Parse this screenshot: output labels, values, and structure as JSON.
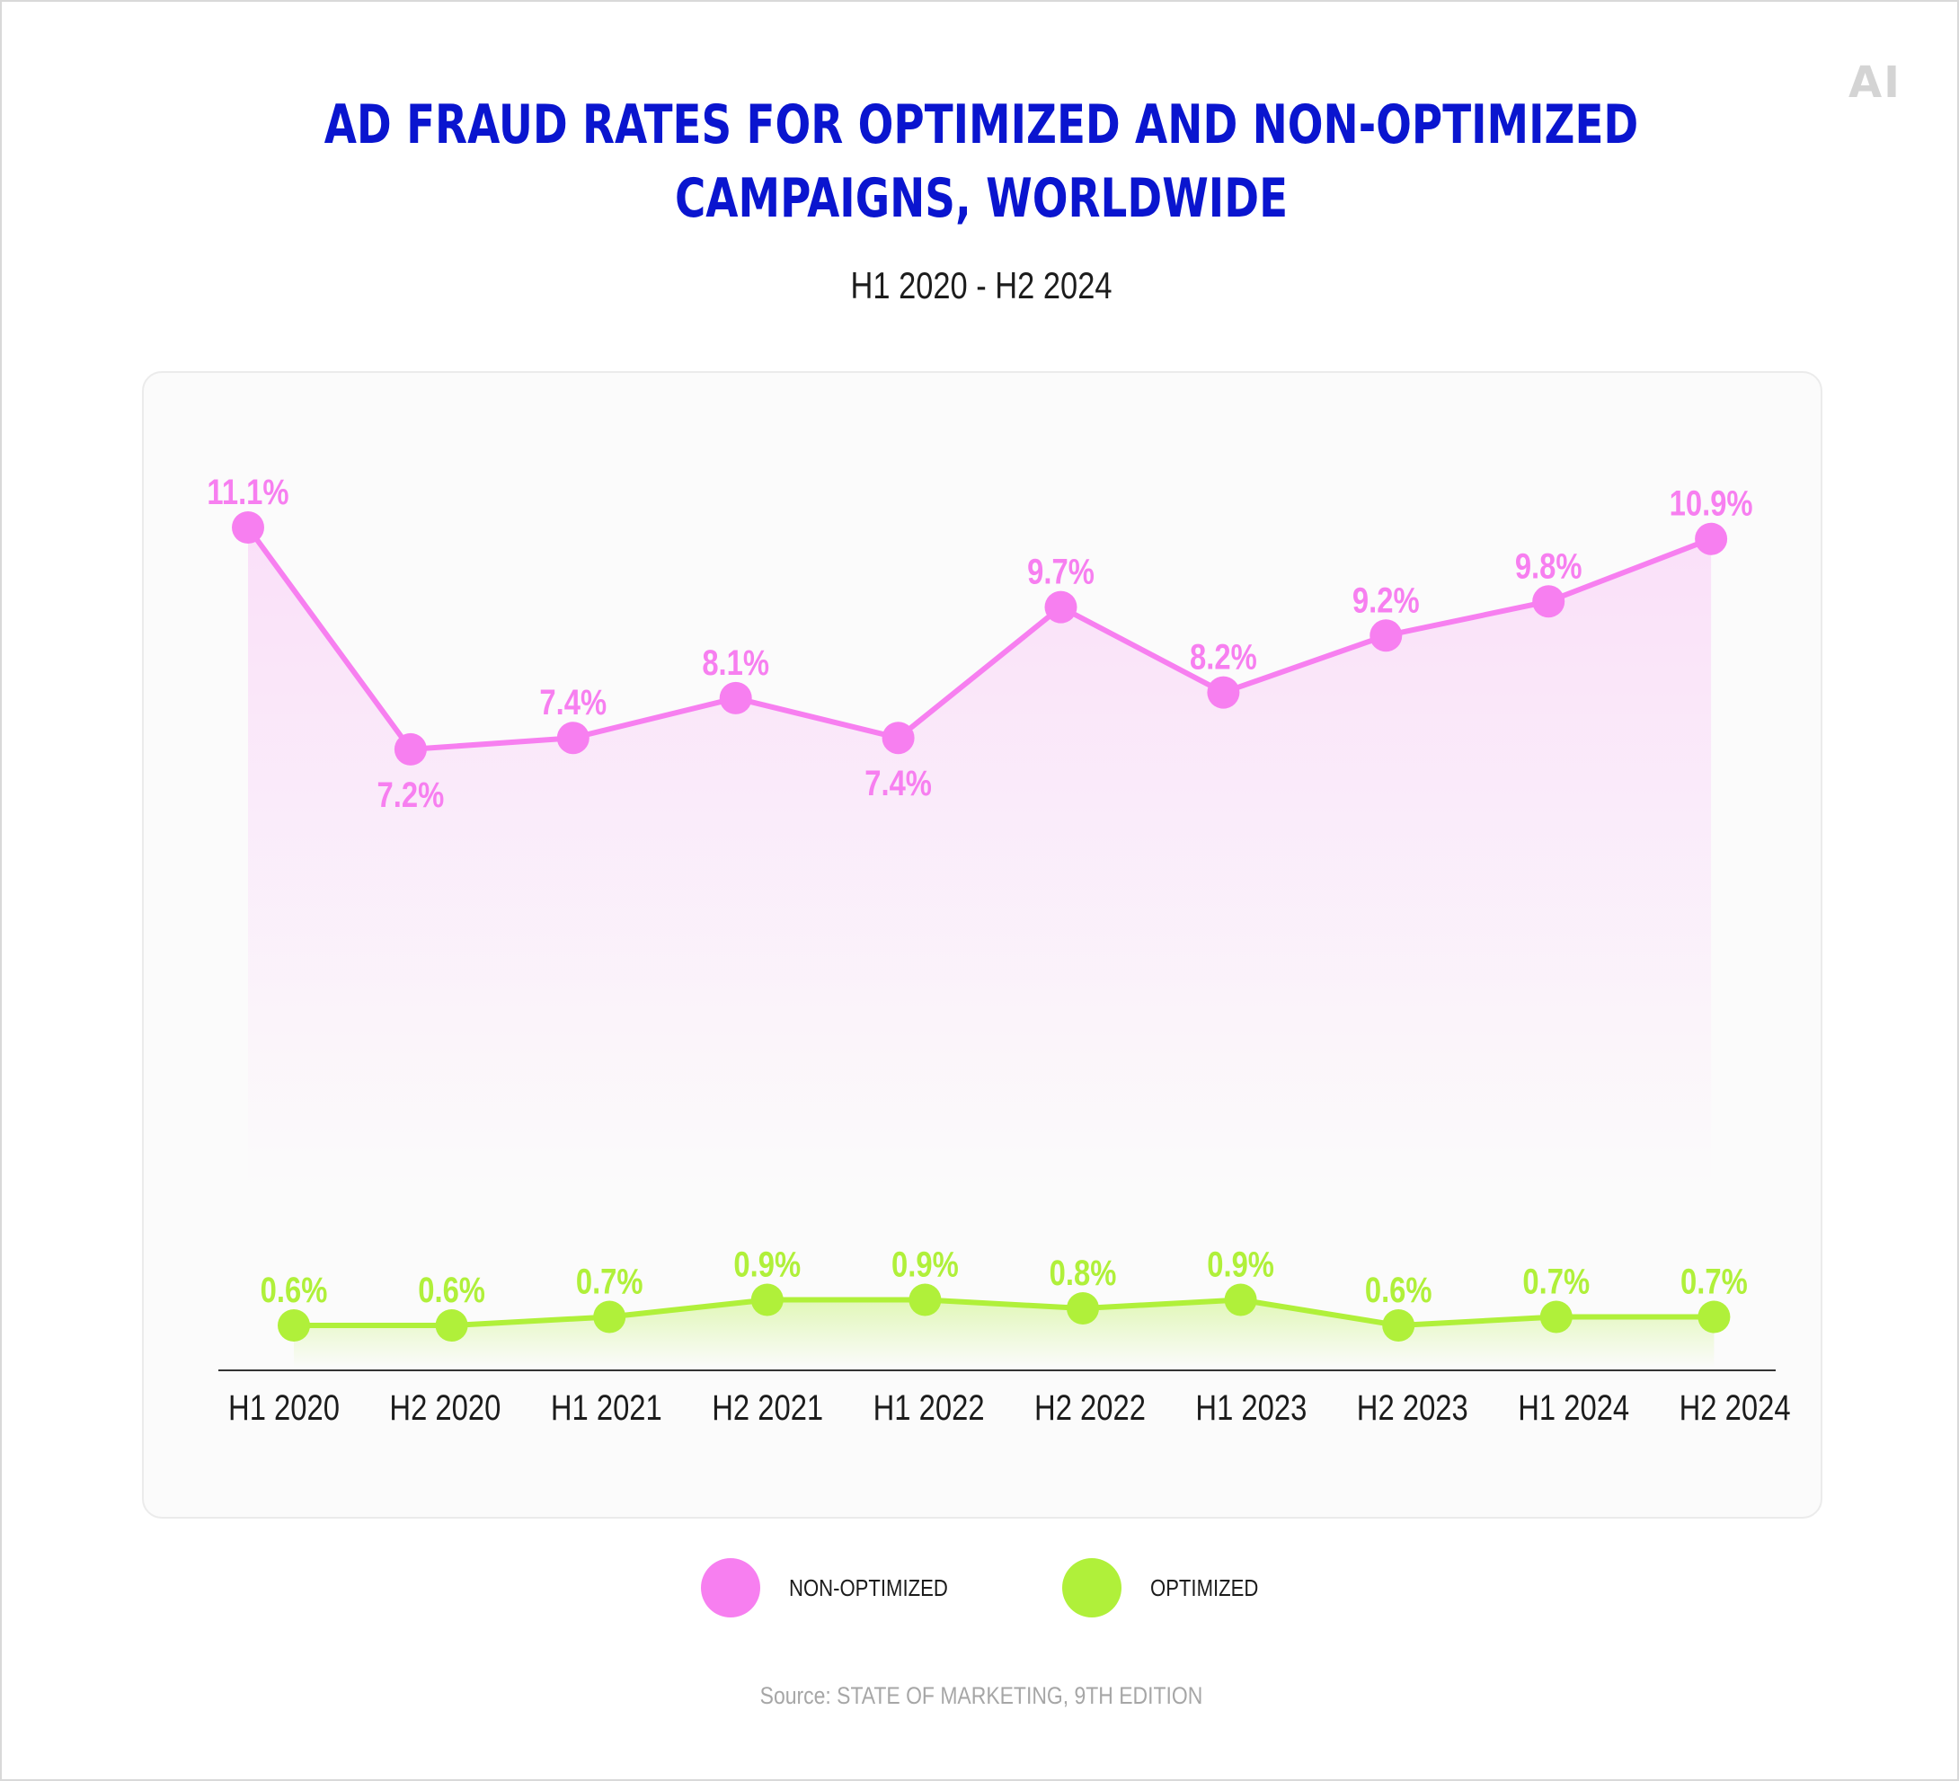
{
  "brand": {
    "logo_text": "AI"
  },
  "title_lines": [
    "AD FRAUD RATES FOR OPTIMIZED AND NON-OPTIMIZED",
    "CAMPAIGNS, WORLDWIDE"
  ],
  "subtitle": "H1 2020 - H2 2024",
  "source": "Source: STATE OF MARKETING, 9TH EDITION",
  "colors": {
    "title": "#0a15cf",
    "non_optimized": "#f77ff0",
    "optimized": "#b0f03a",
    "axis": "#333333"
  },
  "legend": [
    {
      "label": "NON-OPTIMIZED",
      "color": "#f77ff0"
    },
    {
      "label": "OPTIMIZED",
      "color": "#b0f03a"
    }
  ],
  "chart_data": {
    "type": "line",
    "title": "AD FRAUD RATES FOR OPTIMIZED AND NON-OPTIMIZED CAMPAIGNS, WORLDWIDE",
    "subtitle": "H1 2020 - H2 2024",
    "categories": [
      "H1 2020",
      "H2 2020",
      "H1 2021",
      "H2 2021",
      "H1 2022",
      "H2 2022",
      "H1 2023",
      "H2 2023",
      "H1 2024",
      "H2 2024"
    ],
    "series": [
      {
        "name": "NON-OPTIMIZED",
        "color": "#f77ff0",
        "values": [
          11.1,
          7.2,
          7.4,
          8.1,
          7.4,
          9.7,
          8.2,
          9.2,
          9.8,
          10.9
        ],
        "labels": [
          "11.1%",
          "7.2%",
          "7.4%",
          "8.1%",
          "7.4%",
          "9.7%",
          "8.2%",
          "9.2%",
          "9.8%",
          "10.9%"
        ],
        "label_position": [
          "above",
          "below",
          "above",
          "above",
          "below",
          "above",
          "above",
          "above",
          "above",
          "above"
        ]
      },
      {
        "name": "OPTIMIZED",
        "color": "#b0f03a",
        "values": [
          0.6,
          0.6,
          0.7,
          0.9,
          0.9,
          0.8,
          0.9,
          0.6,
          0.7,
          0.7
        ],
        "labels": [
          "0.6%",
          "0.6%",
          "0.7%",
          "0.9%",
          "0.9%",
          "0.8%",
          "0.9%",
          "0.6%",
          "0.7%",
          "0.7%"
        ],
        "label_position": [
          "above",
          "above",
          "above",
          "above",
          "above",
          "above",
          "above",
          "above",
          "above",
          "above"
        ]
      }
    ],
    "area_fill": true,
    "grid": false,
    "legend_position": "bottom-center"
  }
}
